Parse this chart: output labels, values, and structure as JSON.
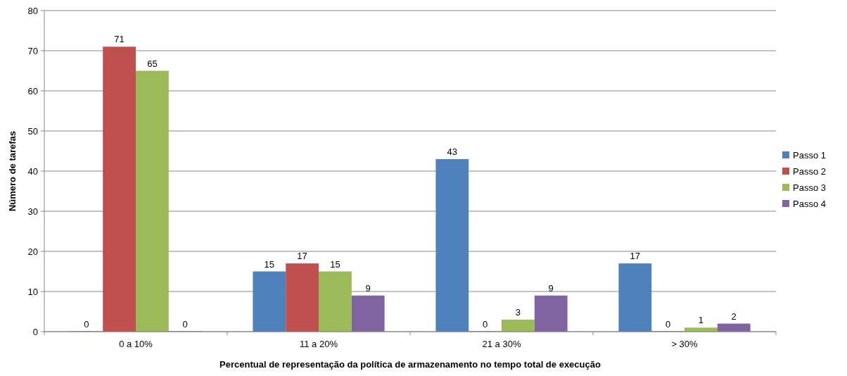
{
  "chart_data": {
    "type": "bar",
    "xlabel": "Percentual de representação da política de armazenamento no tempo total de execução",
    "ylabel": "Número de tarefas",
    "categories": [
      "0 a 10%",
      "11 a 20%",
      "21 a 30%",
      "> 30%"
    ],
    "series": [
      {
        "name": "Passo 1",
        "color": "#4f81bd",
        "values": [
          0,
          15,
          43,
          17
        ]
      },
      {
        "name": "Passo 2",
        "color": "#c0504d",
        "values": [
          71,
          17,
          0,
          0
        ]
      },
      {
        "name": "Passo 3",
        "color": "#9bbb59",
        "values": [
          65,
          15,
          3,
          1
        ]
      },
      {
        "name": "Passo 4",
        "color": "#8064a2",
        "values": [
          0,
          9,
          9,
          2
        ]
      }
    ],
    "ylim": [
      0,
      80
    ],
    "yticks": [
      0,
      10,
      20,
      30,
      40,
      50,
      60,
      70,
      80
    ],
    "grid": "y",
    "legend": "right",
    "data_labels": true
  }
}
